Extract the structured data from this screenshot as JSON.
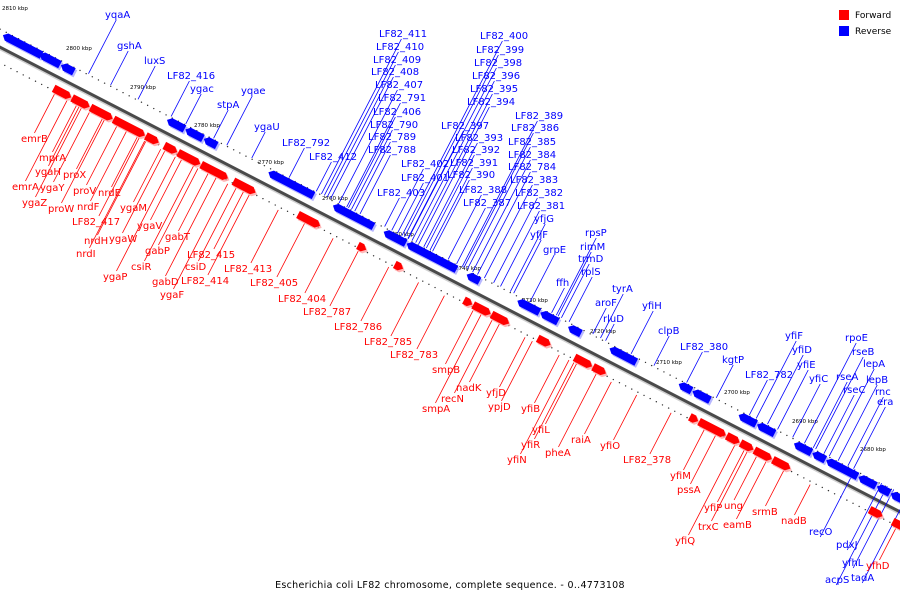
{
  "caption": "Escherichia coli LF82 chromosome, complete sequence. - 0..4773108",
  "legend": {
    "forward_label": "Forward",
    "reverse_label": "Reverse",
    "forward_color": "#ff0000",
    "reverse_color": "#0000ff"
  },
  "kbp_labels": [
    "2810 kbp",
    "2800 kbp",
    "2790 kbp",
    "2780 kbp",
    "2770 kbp",
    "2760 kbp",
    "2750 kbp",
    "2740 kbp",
    "2730 kbp",
    "2720 kbp",
    "2710 kbp",
    "2700 kbp",
    "2690 kbp",
    "2680 kbp"
  ],
  "reverse_genes": [
    "yqaA",
    "gshA",
    "luxS",
    "LF82_416",
    "ygac",
    "yqae",
    "stpA",
    "ygaU",
    "LF82_792",
    "LF82_412",
    "LF82_411",
    "LF82_410",
    "LF82_409",
    "LF82_408",
    "LF82_407",
    "LF82_791",
    "LF82_406",
    "LF82_790",
    "LF82_789",
    "LF82_788",
    "LF82_400",
    "LF82_399",
    "LF82_398",
    "LF82_396",
    "LF82_395",
    "LF82_394",
    "LF82_397",
    "LF82_393",
    "LF82_392",
    "LF82_391",
    "LF82_390",
    "LF82_388",
    "LF82_387",
    "LF82_402",
    "LF82_401",
    "LF82_403",
    "LF82_389",
    "LF82_386",
    "LF82_385",
    "LF82_384",
    "LF82_784",
    "LF82_383",
    "LF82_382",
    "LF82_381",
    "yfjG",
    "yfjF",
    "grpE",
    "rpsP",
    "rimM",
    "trmD",
    "rplS",
    "ffh",
    "aroF",
    "tyrA",
    "rluD",
    "yfiH",
    "clpB",
    "LF82_380",
    "kgtP",
    "LF82_782",
    "yfiF",
    "yfiD",
    "yfiE",
    "yfiC",
    "rpoE",
    "rseB",
    "rseA",
    "rseC",
    "lepA",
    "lepB",
    "rnc",
    "era",
    "recO",
    "pdxJ",
    "yfhL",
    "acpS",
    "tadA"
  ],
  "forward_genes": [
    "emrB",
    "mprA",
    "ygaH",
    "proX",
    "emrA",
    "ygaY",
    "proV",
    "nrdE",
    "ygaZ",
    "proW",
    "nrdF",
    "LF82_417",
    "ygaM",
    "nrdH",
    "ygaW",
    "nrdI",
    "ygaV",
    "gabT",
    "gabP",
    "csiR",
    "LF82_415",
    "csiD",
    "LF82_413",
    "ygaP",
    "gabD",
    "LF82_414",
    "ygaF",
    "LF82_405",
    "LF82_404",
    "LF82_787",
    "LF82_786",
    "LF82_785",
    "LF82_783",
    "smpB",
    "nadK",
    "recN",
    "smpA",
    "yfjD",
    "ypjD",
    "yfiB",
    "yfiL",
    "yfiR",
    "yfiN",
    "raiA",
    "pheA",
    "yfiO",
    "LF82_378",
    "yfiM",
    "pssA",
    "yfiP",
    "ung",
    "trxC",
    "eamB",
    "srmB",
    "yfiQ",
    "nadB",
    "yfhD"
  ]
}
